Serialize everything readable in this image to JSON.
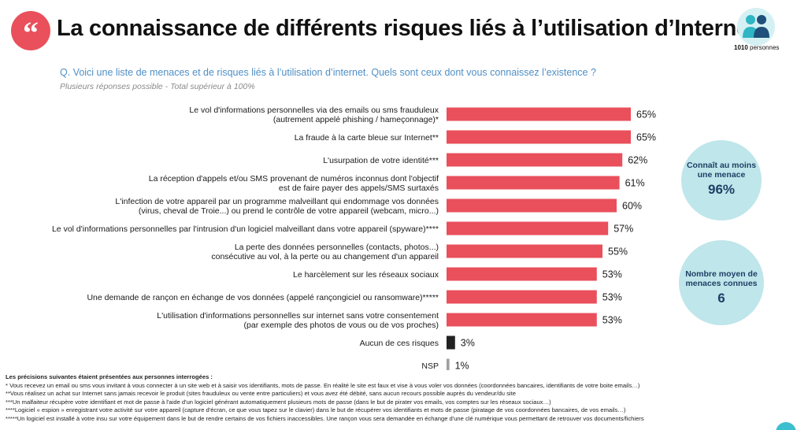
{
  "header": {
    "title": "La connaissance de différents risques liés à l’utilisation d’Internet",
    "quote_icon": "quote-icon",
    "people_icon": "people-icon",
    "people_count": "1010",
    "people_unit": "personnes"
  },
  "question": "Q. Voici une liste de menaces et de risques liés à l’utilisation d’internet. Quels sont ceux dont vous connaissez l’existence ?",
  "question_note": "Plusieurs réponses possible - Total supérieur à 100%",
  "colors": {
    "primary": "#e9505b",
    "other": "#222222",
    "nsp": "#a0a0a0",
    "question": "#4f8fc6",
    "bubble": "#bfe6ea"
  },
  "chart_data": {
    "type": "bar",
    "orientation": "horizontal",
    "categories": [
      [
        "Le vol d'informations personnelles via des emails ou sms frauduleux",
        "(autrement appelé phishing / hameçonnage)*"
      ],
      [
        "La fraude à la carte bleue sur Internet**"
      ],
      [
        "L'usurpation de votre identité***"
      ],
      [
        "La réception d'appels et/ou SMS provenant de numéros inconnus dont l'objectif",
        "est de faire payer des appels/SMS surtaxés"
      ],
      [
        "L'infection de votre appareil par un programme malveillant qui endommage vos données",
        "(virus, cheval de Troie...) ou prend le contrôle de votre appareil (webcam, micro...)"
      ],
      [
        "Le vol d'informations personnelles par l'intrusion d'un logiciel malveillant dans votre appareil (spyware)****"
      ],
      [
        "La perte des données personnelles (contacts, photos...)",
        "consécutive au vol, à la perte ou au changement d'un appareil"
      ],
      [
        "Le harcèlement sur les réseaux sociaux"
      ],
      [
        "Une demande de rançon en échange de vos données (appelé rançongiciel ou ransomware)*****"
      ],
      [
        "L'utilisation d'informations personnelles sur internet sans votre consentement",
        "(par exemple des photos de vous ou de vos proches)"
      ],
      [
        "Aucun de ces risques"
      ],
      [
        "NSP"
      ]
    ],
    "values": [
      65,
      65,
      62,
      61,
      60,
      57,
      55,
      53,
      53,
      53,
      3,
      1
    ],
    "value_labels": [
      "65%",
      "65%",
      "62%",
      "61%",
      "60%",
      "57%",
      "55%",
      "53%",
      "53%",
      "53%",
      "3%",
      "1%"
    ],
    "bar_colors": [
      "#e9505b",
      "#e9505b",
      "#e9505b",
      "#e9505b",
      "#e9505b",
      "#e9505b",
      "#e9505b",
      "#e9505b",
      "#e9505b",
      "#e9505b",
      "#222222",
      "#a0a0a0"
    ],
    "xlim": [
      0,
      100
    ],
    "grid": false,
    "title": "",
    "xlabel": "",
    "ylabel": ""
  },
  "summary": [
    {
      "label": "Connaît au moins une menace",
      "value": "96%"
    },
    {
      "label": "Nombre moyen de menaces connues",
      "value": "6"
    }
  ],
  "footnotes": {
    "title": "Les précisions suivantes étaient présentées aux personnes interrogées :",
    "lines": [
      "* Vous recevez un email ou sms vous invitant à vous connecter à un site web et à saisir vos identifiants, mots de passe. En réalité le site est faux et vise à vous voler vos données (coordonnées bancaires, identifiants de votre boite emails…)",
      "**Vous réalisez un achat sur Internet sans jamais recevoir le produit (sites frauduleux ou vente entre particuliers) et vous avez été débité, sans aucun recours possible auprès du vendeur/du site",
      "***Un malfaiteur récupère votre identifiant et mot de passe à l'aide d'un logiciel générant automatiquement plusieurs mots de passe (dans le but de pirater vos emails, vos comptes sur les réseaux sociaux…)",
      "****Logiciel « espion » enregistrant votre activité sur votre appareil (capture d'écran, ce que vous tapez sur le clavier) dans le but de récupérer vos identifiants et mots de passe (piratage de vos coordonnées bancaires, de vos emails…)",
      "*****Un logiciel est installé à votre insu sur votre équipement dans le but de rendre certains de vos fichiers inaccessibles. Une rançon vous sera demandée en échange d'une clé numérique vous permettant de retrouver vos documents/fichiers"
    ]
  }
}
